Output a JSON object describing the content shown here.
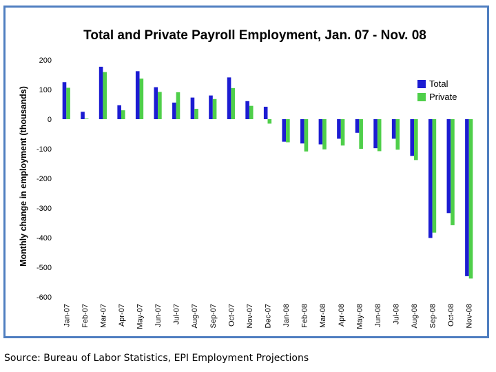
{
  "chart_data": {
    "type": "bar",
    "title": "Total and Private Payroll Employment, Jan. 07 - Nov. 08",
    "xlabel": "",
    "ylabel": "Monthly change in employment (thousands)",
    "ylim": [
      -600,
      200
    ],
    "yticks": [
      200,
      100,
      0,
      -100,
      -200,
      -300,
      -400,
      -500,
      -600
    ],
    "ytick_labels": [
      "200",
      "100",
      "0",
      "-100",
      "-200",
      "-300",
      "-400",
      "-500",
      "-600"
    ],
    "grid": false,
    "legend_position": "right",
    "categories": [
      "Jan-07",
      "Feb-07",
      "Mar-07",
      "Apr-07",
      "May-07",
      "Jun-07",
      "Jul-07",
      "Aug-07",
      "Sep-07",
      "Oct-07",
      "Nov-07",
      "Dec-07",
      "Jan-08",
      "Feb-08",
      "Mar-08",
      "Apr-08",
      "May-08",
      "Jun-08",
      "Jul-08",
      "Aug-08",
      "Sep-08",
      "Oct-08",
      "Nov-08"
    ],
    "series": [
      {
        "name": "Total",
        "color": "#1c1cd2",
        "values": [
          125,
          25,
          177,
          47,
          162,
          108,
          56,
          73,
          80,
          141,
          61,
          42,
          -76,
          -82,
          -85,
          -66,
          -46,
          -98,
          -66,
          -124,
          -401,
          -317,
          -530
        ]
      },
      {
        "name": "Private",
        "color": "#4fcf4a",
        "values": [
          106,
          2,
          159,
          30,
          137,
          92,
          91,
          35,
          68,
          105,
          45,
          -15,
          -78,
          -109,
          -102,
          -89,
          -100,
          -108,
          -103,
          -138,
          -383,
          -358,
          -538
        ]
      }
    ]
  },
  "source": "Source: Bureau of Labor Statistics, EPI Employment Projections"
}
